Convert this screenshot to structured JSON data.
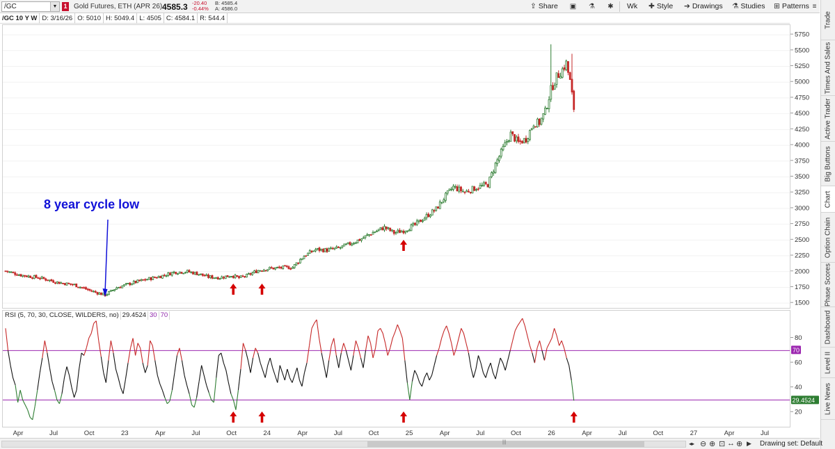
{
  "toolbar": {
    "symbol": "/GC",
    "flag": "1",
    "description": "Gold Futures, ETH (APR 26)",
    "last": "4585.3",
    "net_change": "-20.40",
    "pct_change": "-0.44%",
    "bid": "B: 4585.4",
    "ask": "A: 4586.0",
    "share_label": "Share",
    "aggregation_label": "Wk",
    "style_label": "Style",
    "drawings_label": "Drawings",
    "studies_label": "Studies",
    "patterns_label": "Patterns"
  },
  "infobar": {
    "symbol_tag": "/GC 10 Y W",
    "date": "D: 3/16/26",
    "open": "O: 5010",
    "high": "H: 5049.4",
    "low": "L: 4505",
    "close": "C: 4584.1",
    "range": "R: 544.4"
  },
  "sidebar": {
    "tabs": [
      "Trade",
      "Times And Sales",
      "Active Trader",
      "Big Buttons",
      "Chart",
      "Option Chain",
      "Phase Scores",
      "Dashboard",
      "Level II",
      "Live News"
    ],
    "active": "Chart"
  },
  "annotation": {
    "text": "8 year cycle low",
    "color": "#1010d8"
  },
  "rsi": {
    "label": "RSI (5, 70, 30, CLOSE, WILDERS, no)",
    "value": "29.4524",
    "oversold": "30",
    "overbought": "70"
  },
  "bottom": {
    "drawing_set": "Drawing set: Default"
  },
  "colors": {
    "up": "#2e7d32",
    "down": "#c62828",
    "rsi_line": "#111111",
    "level_line": "#9c27b0",
    "arrow": "#d50000",
    "current_badge": "#2e7d32"
  },
  "chart_data": [
    {
      "type": "candlestick",
      "title": "/GC 10 Y W",
      "y_axis_ticks": [
        1500,
        1750,
        2000,
        2250,
        2500,
        2750,
        3000,
        3250,
        3500,
        3750,
        4000,
        4250,
        4500,
        4750,
        5000,
        5250,
        5500,
        5750
      ],
      "ylim": [
        1480,
        5850
      ],
      "x_tick_labels": [
        "Apr",
        "Jul",
        "Oct",
        "23",
        "Apr",
        "Jul",
        "Oct",
        "24",
        "Apr",
        "Jul",
        "Oct",
        "25",
        "Apr",
        "Jul",
        "Oct",
        "26",
        "Apr",
        "Jul",
        "Oct",
        "27",
        "Apr",
        "Jul"
      ],
      "price_path": [
        [
          0,
          2010
        ],
        [
          8,
          1945
        ],
        [
          18,
          1900
        ],
        [
          28,
          1825
        ],
        [
          36,
          1790
        ],
        [
          45,
          1690
        ],
        [
          52,
          1630
        ],
        [
          58,
          1745
        ],
        [
          66,
          1820
        ],
        [
          74,
          1880
        ],
        [
          82,
          1935
        ],
        [
          88,
          1990
        ],
        [
          95,
          2000
        ],
        [
          100,
          1970
        ],
        [
          106,
          1915
        ],
        [
          112,
          1905
        ],
        [
          118,
          1940
        ],
        [
          122,
          1900
        ],
        [
          126,
          1935
        ],
        [
          132,
          2020
        ],
        [
          138,
          2050
        ],
        [
          144,
          2060
        ],
        [
          150,
          2070
        ],
        [
          156,
          2250
        ],
        [
          162,
          2350
        ],
        [
          168,
          2340
        ],
        [
          174,
          2370
        ],
        [
          180,
          2440
        ],
        [
          186,
          2520
        ],
        [
          192,
          2620
        ],
        [
          198,
          2700
        ],
        [
          203,
          2615
        ],
        [
          208,
          2650
        ],
        [
          214,
          2740
        ],
        [
          220,
          2880
        ],
        [
          225,
          2990
        ],
        [
          230,
          3200
        ],
        [
          234,
          3340
        ],
        [
          240,
          3260
        ],
        [
          246,
          3330
        ],
        [
          252,
          3380
        ],
        [
          256,
          3700
        ],
        [
          260,
          3950
        ],
        [
          264,
          4180
        ],
        [
          268,
          4040
        ],
        [
          272,
          4100
        ],
        [
          276,
          4350
        ],
        [
          279,
          4360
        ],
        [
          282,
          4530
        ],
        [
          285,
          4880
        ],
        [
          288,
          5080
        ],
        [
          291,
          5200
        ],
        [
          293,
          5300
        ],
        [
          295,
          5010
        ],
        [
          297,
          4585
        ]
      ],
      "spikes": [
        {
          "week": 285,
          "high": 5600
        },
        {
          "week": 296,
          "high": 5450
        }
      ],
      "annotations": [
        {
          "text": "8 year cycle low",
          "points_to_week": 52
        },
        {
          "type": "up-arrow",
          "week": 119
        },
        {
          "type": "up-arrow",
          "week": 134
        },
        {
          "type": "up-arrow",
          "week": 208
        },
        {
          "type": "up-arrow",
          "week": 297
        }
      ]
    },
    {
      "type": "line",
      "title": "RSI (5, 70, 30, CLOSE, WILDERS, no)",
      "y_axis_ticks": [
        20,
        40,
        60,
        80
      ],
      "ylim": [
        10,
        100
      ],
      "levels": [
        30,
        70
      ],
      "last_value": 29.4524,
      "values": [
        88,
        70,
        58,
        48,
        42,
        28,
        38,
        30,
        26,
        22,
        16,
        14,
        25,
        38,
        52,
        64,
        78,
        68,
        56,
        45,
        38,
        30,
        27,
        35,
        48,
        57,
        50,
        40,
        32,
        38,
        55,
        68,
        66,
        72,
        80,
        84,
        92,
        94,
        78,
        65,
        52,
        44,
        62,
        78,
        68,
        55,
        48,
        40,
        35,
        47,
        60,
        72,
        80,
        66,
        76,
        72,
        60,
        52,
        58,
        78,
        74,
        62,
        50,
        43,
        38,
        32,
        27,
        29,
        38,
        52,
        66,
        72,
        62,
        50,
        42,
        35,
        26,
        24,
        32,
        45,
        58,
        50,
        42,
        36,
        30,
        28,
        48,
        66,
        68,
        60,
        54,
        44,
        35,
        30,
        22,
        38,
        55,
        76,
        70,
        62,
        52,
        64,
        72,
        68,
        60,
        54,
        48,
        58,
        64,
        56,
        50,
        44,
        58,
        52,
        46,
        55,
        48,
        44,
        50,
        56,
        46,
        41,
        52,
        60,
        74,
        88,
        92,
        95,
        80,
        68,
        58,
        48,
        62,
        74,
        80,
        66,
        56,
        68,
        76,
        70,
        62,
        54,
        66,
        78,
        72,
        64,
        56,
        70,
        82,
        76,
        64,
        72,
        86,
        88,
        84,
        76,
        66,
        72,
        80,
        85,
        91,
        86,
        80,
        62,
        44,
        30,
        45,
        54,
        50,
        44,
        41,
        48,
        52,
        46,
        50,
        58,
        66,
        72,
        80,
        86,
        90,
        84,
        76,
        66,
        72,
        80,
        88,
        84,
        76,
        68,
        56,
        48,
        55,
        66,
        60,
        52,
        48,
        55,
        60,
        52,
        47,
        56,
        64,
        60,
        54,
        62,
        70,
        78,
        86,
        90,
        93,
        96,
        90,
        82,
        74,
        68,
        60,
        72,
        78,
        70,
        62,
        72,
        76,
        80,
        88,
        82,
        74,
        78,
        72,
        64,
        58,
        46,
        29.45
      ]
    }
  ]
}
